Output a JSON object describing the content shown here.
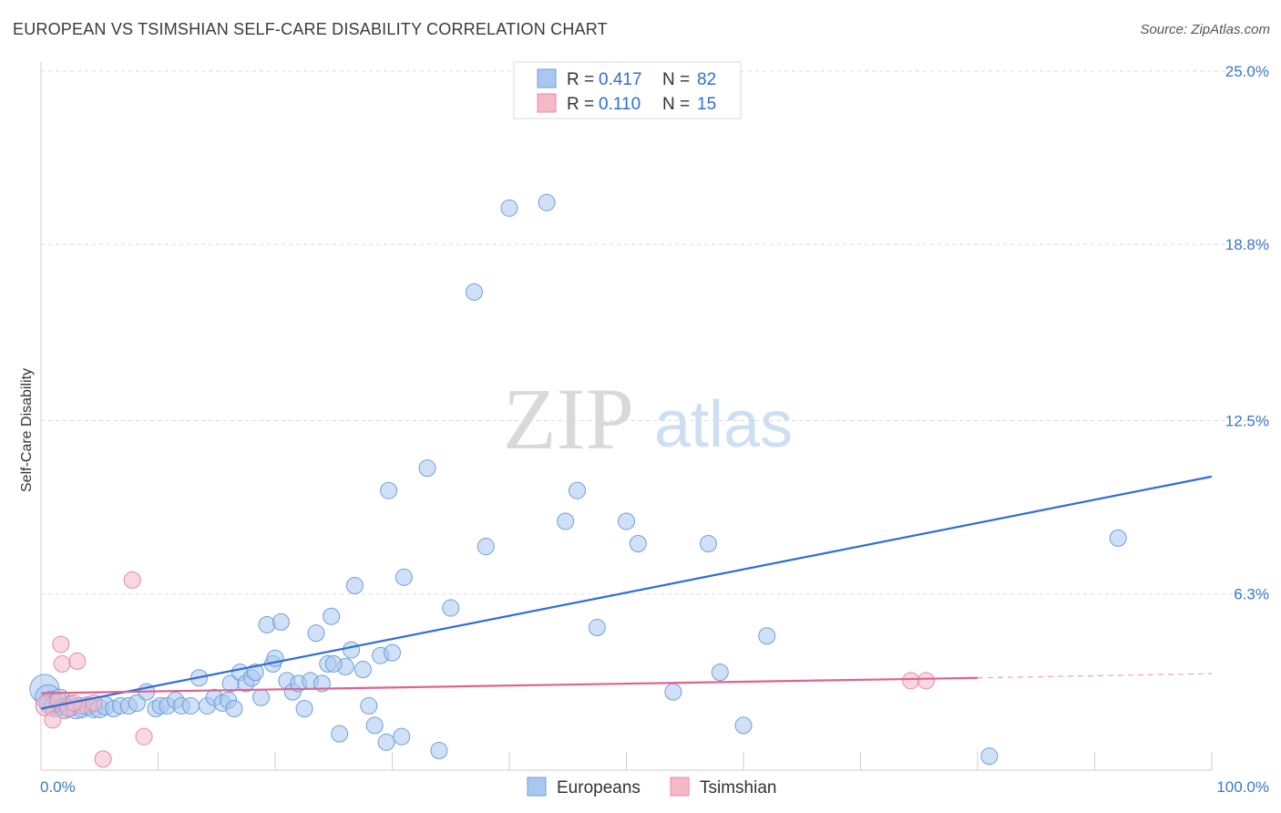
{
  "title": "EUROPEAN VS TSIMSHIAN SELF-CARE DISABILITY CORRELATION CHART",
  "source": "Source: ZipAtlas.com",
  "watermark": {
    "zip": "ZIP",
    "atlas": "atlas"
  },
  "legend": {
    "rows": [
      {
        "r_label": "R =",
        "r_value": "0.417",
        "n_label": "N =",
        "n_value": "82",
        "color": "#a9c8f0"
      },
      {
        "r_label": "R =",
        "r_value": "0.110",
        "n_label": "N =",
        "n_value": "15",
        "color": "#f6b8c9"
      }
    ]
  },
  "bottom_legend": {
    "europeans": "Europeans",
    "tsimshian": "Tsimshian"
  },
  "chart_data": {
    "type": "scatter",
    "title": "EUROPEAN VS TSIMSHIAN SELF-CARE DISABILITY CORRELATION CHART",
    "xlabel": "",
    "ylabel": "Self-Care Disability",
    "xlim": [
      0,
      100
    ],
    "ylim": [
      0,
      25.0
    ],
    "x_tick_labels": [
      "0.0%",
      "100.0%"
    ],
    "y_ticks": [
      6.3,
      12.5,
      18.8,
      25.0
    ],
    "y_tick_labels": [
      "6.3%",
      "12.5%",
      "18.8%",
      "25.0%"
    ],
    "grid": true,
    "legend_position": "top-center",
    "series": [
      {
        "name": "Europeans",
        "color": "#a9c8f0",
        "stroke": "#6f9fd8",
        "trend": {
          "x": [
            0,
            100
          ],
          "y": [
            2.2,
            10.5
          ],
          "color": "#2f6fd0"
        },
        "points": [
          [
            0.3,
            2.9
          ],
          [
            0.6,
            2.6
          ],
          [
            0.9,
            2.4
          ],
          [
            1.2,
            2.3
          ],
          [
            1.6,
            2.5
          ],
          [
            2.0,
            2.2
          ],
          [
            2.5,
            2.3
          ],
          [
            3.0,
            2.2
          ],
          [
            3.5,
            2.2
          ],
          [
            4.0,
            2.3
          ],
          [
            4.5,
            2.2
          ],
          [
            5.0,
            2.2
          ],
          [
            5.5,
            2.3
          ],
          [
            6.2,
            2.2
          ],
          [
            6.8,
            2.3
          ],
          [
            7.5,
            2.3
          ],
          [
            8.2,
            2.4
          ],
          [
            9.0,
            2.8
          ],
          [
            9.8,
            2.2
          ],
          [
            10.2,
            2.3
          ],
          [
            10.8,
            2.3
          ],
          [
            11.5,
            2.5
          ],
          [
            12.0,
            2.3
          ],
          [
            12.8,
            2.3
          ],
          [
            13.5,
            3.3
          ],
          [
            14.2,
            2.3
          ],
          [
            14.8,
            2.6
          ],
          [
            15.5,
            2.4
          ],
          [
            16.0,
            2.5
          ],
          [
            16.5,
            2.2
          ],
          [
            16.2,
            3.1
          ],
          [
            17.0,
            3.5
          ],
          [
            17.5,
            3.1
          ],
          [
            18.0,
            3.3
          ],
          [
            18.3,
            3.5
          ],
          [
            18.8,
            2.6
          ],
          [
            19.3,
            5.2
          ],
          [
            19.8,
            3.8
          ],
          [
            20.5,
            5.3
          ],
          [
            21.0,
            3.2
          ],
          [
            21.5,
            2.8
          ],
          [
            22.0,
            3.1
          ],
          [
            22.5,
            2.2
          ],
          [
            23.0,
            3.2
          ],
          [
            23.5,
            4.9
          ],
          [
            24.0,
            3.1
          ],
          [
            24.5,
            3.8
          ],
          [
            24.8,
            5.5
          ],
          [
            25.5,
            1.3
          ],
          [
            26.0,
            3.7
          ],
          [
            26.5,
            4.3
          ],
          [
            26.8,
            6.6
          ],
          [
            27.5,
            3.6
          ],
          [
            28.0,
            2.3
          ],
          [
            28.5,
            1.6
          ],
          [
            29.0,
            4.1
          ],
          [
            29.5,
            1.0
          ],
          [
            30.0,
            4.2
          ],
          [
            30.8,
            1.2
          ],
          [
            31.0,
            6.9
          ],
          [
            29.7,
            10.0
          ],
          [
            33.0,
            10.8
          ],
          [
            34.0,
            0.7
          ],
          [
            35.0,
            5.8
          ],
          [
            37.0,
            17.1
          ],
          [
            38.0,
            8.0
          ],
          [
            40.0,
            20.1
          ],
          [
            43.2,
            20.3
          ],
          [
            44.8,
            8.9
          ],
          [
            45.8,
            10.0
          ],
          [
            47.5,
            5.1
          ],
          [
            50.0,
            8.9
          ],
          [
            51.0,
            8.1
          ],
          [
            54.0,
            2.8
          ],
          [
            57.0,
            8.1
          ],
          [
            58.0,
            3.5
          ],
          [
            60.0,
            1.6
          ],
          [
            62.0,
            4.8
          ],
          [
            81.0,
            0.5
          ],
          [
            92.0,
            8.3
          ],
          [
            25.0,
            3.8
          ],
          [
            20.0,
            4.0
          ]
        ],
        "point_sizes": [
          16,
          14,
          13,
          12,
          12,
          11,
          11,
          11,
          10,
          10,
          10,
          10,
          10,
          9,
          9,
          9,
          9,
          9,
          9,
          9,
          9,
          9,
          9,
          9,
          9,
          9,
          9,
          9,
          9,
          9,
          9,
          9,
          9,
          9,
          9,
          9,
          9,
          9,
          9,
          9,
          9,
          9,
          9,
          9,
          9,
          9,
          9,
          9,
          9,
          9,
          9,
          9,
          9,
          9,
          9,
          9,
          9,
          9,
          9,
          9,
          9,
          9,
          9,
          9,
          9,
          9,
          9,
          9,
          9,
          9,
          9,
          9,
          9,
          9,
          9,
          9,
          9,
          9,
          9,
          9,
          9,
          9
        ]
      },
      {
        "name": "Tsimshian",
        "color": "#f6b8c9",
        "stroke": "#e48aa6",
        "trend": {
          "x": [
            0,
            80
          ],
          "y": [
            2.75,
            3.3
          ],
          "dash_to": [
            100,
            3.45
          ],
          "color": "#e2628d"
        },
        "points": [
          [
            0.4,
            2.3
          ],
          [
            1.0,
            1.8
          ],
          [
            1.5,
            2.5
          ],
          [
            1.7,
            4.5
          ],
          [
            1.8,
            3.8
          ],
          [
            2.3,
            2.2
          ],
          [
            3.1,
            3.9
          ],
          [
            3.5,
            2.3
          ],
          [
            4.5,
            2.4
          ],
          [
            5.3,
            0.4
          ],
          [
            7.8,
            6.8
          ],
          [
            8.8,
            1.2
          ],
          [
            74.3,
            3.2
          ],
          [
            75.6,
            3.2
          ],
          [
            2.8,
            2.4
          ]
        ],
        "point_sizes": [
          11,
          9,
          9,
          9,
          9,
          9,
          9,
          9,
          9,
          9,
          9,
          9,
          9,
          9,
          9
        ]
      }
    ]
  }
}
